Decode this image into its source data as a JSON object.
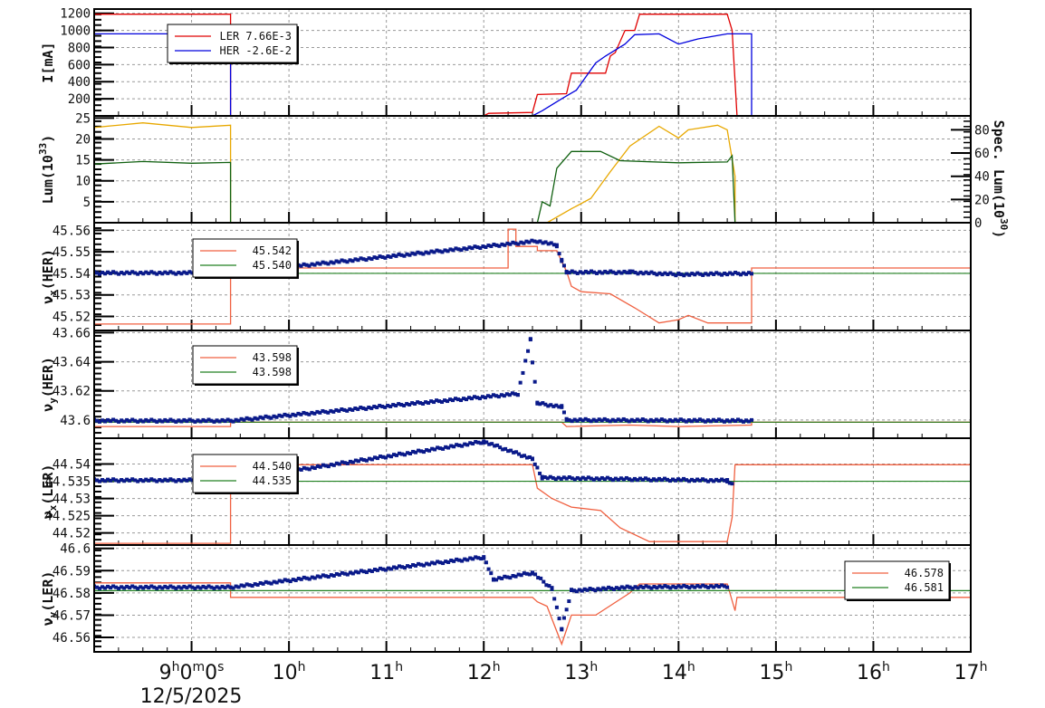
{
  "chart_data": {
    "type": "line",
    "layout": "6 vertically stacked panels sharing time x-axis",
    "x_axis": {
      "range_hours": [
        8,
        17
      ],
      "tick_labels": [
        "9h0m0s",
        "10h",
        "11h",
        "12h",
        "13h",
        "14h",
        "15h",
        "16h",
        "17h"
      ],
      "tick_hours": [
        9,
        10,
        11,
        12,
        13,
        14,
        15,
        16,
        17
      ],
      "date_label": "12/5/2025",
      "grid": true
    },
    "panels": [
      {
        "id": "current",
        "ylabel": "I[mA]",
        "ylim": [
          0,
          1250
        ],
        "yticks": [
          200,
          400,
          600,
          800,
          1000,
          1200
        ],
        "right_axis": null,
        "legend": [
          {
            "label": "LER",
            "value": "7.66E-3",
            "color": "#e00000"
          },
          {
            "label": "HER",
            "value": "-2.6E-2",
            "color": "#0000dd"
          }
        ],
        "series": [
          {
            "name": "LER",
            "color": "#e00000",
            "type": "line",
            "points": [
              [
                8.0,
                1190
              ],
              [
                9.4,
                1190
              ],
              [
                9.4,
                0
              ],
              [
                12.0,
                0
              ],
              [
                12.05,
                30
              ],
              [
                12.5,
                40
              ],
              [
                12.55,
                250
              ],
              [
                12.85,
                260
              ],
              [
                12.9,
                500
              ],
              [
                13.25,
                500
              ],
              [
                13.3,
                700
              ],
              [
                13.35,
                740
              ],
              [
                13.45,
                1000
              ],
              [
                13.55,
                1000
              ],
              [
                13.6,
                1190
              ],
              [
                14.5,
                1190
              ],
              [
                14.55,
                1000
              ],
              [
                14.6,
                0
              ],
              [
                14.8,
                0
              ],
              [
                17,
                0
              ]
            ]
          },
          {
            "name": "HER",
            "color": "#0000dd",
            "type": "line",
            "points": [
              [
                8.0,
                960
              ],
              [
                9.4,
                960
              ],
              [
                9.4,
                0
              ],
              [
                12.5,
                0
              ],
              [
                12.6,
                60
              ],
              [
                12.8,
                200
              ],
              [
                12.95,
                300
              ],
              [
                13.15,
                620
              ],
              [
                13.25,
                700
              ],
              [
                13.45,
                840
              ],
              [
                13.55,
                950
              ],
              [
                13.8,
                960
              ],
              [
                14.0,
                840
              ],
              [
                14.2,
                900
              ],
              [
                14.5,
                960
              ],
              [
                14.75,
                960
              ],
              [
                14.75,
                0
              ],
              [
                17,
                0
              ]
            ]
          }
        ]
      },
      {
        "id": "luminosity",
        "ylabel": "Lum(10^33)",
        "ylim": [
          0,
          25.5
        ],
        "yticks": [
          5,
          10,
          15,
          20,
          25
        ],
        "right_axis": {
          "label": "Spec. Lum(10^30)",
          "ylim": [
            0,
            92
          ],
          "yticks": [
            0,
            20,
            40,
            60,
            80
          ]
        },
        "legend": [],
        "series": [
          {
            "name": "Spec. Lum",
            "axis": "right",
            "color": "#e8a800",
            "type": "line",
            "points": [
              [
                8.0,
                82
              ],
              [
                8.5,
                86
              ],
              [
                9.0,
                82
              ],
              [
                9.4,
                84
              ],
              [
                9.4,
                0
              ],
              [
                12.65,
                0
              ],
              [
                12.9,
                12
              ],
              [
                13.1,
                21
              ],
              [
                13.3,
                44
              ],
              [
                13.5,
                66
              ],
              [
                13.8,
                83
              ],
              [
                14.0,
                73
              ],
              [
                14.1,
                80
              ],
              [
                14.4,
                84
              ],
              [
                14.5,
                80
              ],
              [
                14.58,
                40
              ],
              [
                14.58,
                0
              ],
              [
                17,
                0
              ]
            ]
          },
          {
            "name": "Lum",
            "axis": "left",
            "color": "#106010",
            "type": "line",
            "points": [
              [
                8.0,
                14
              ],
              [
                8.5,
                14.6
              ],
              [
                9.0,
                14.2
              ],
              [
                9.4,
                14.4
              ],
              [
                9.4,
                0
              ],
              [
                12.55,
                0
              ],
              [
                12.6,
                5
              ],
              [
                12.68,
                4
              ],
              [
                12.75,
                13
              ],
              [
                12.9,
                17
              ],
              [
                13.2,
                17
              ],
              [
                13.4,
                14.8
              ],
              [
                14.0,
                14.3
              ],
              [
                14.5,
                14.5
              ],
              [
                14.55,
                16
              ],
              [
                14.58,
                0
              ],
              [
                17,
                0
              ]
            ]
          }
        ]
      },
      {
        "id": "nux-her",
        "ylabel": "νx(HER)",
        "ylim": [
          45.5135,
          45.5635
        ],
        "yticks": [
          45.52,
          45.53,
          45.54,
          45.55,
          45.56
        ],
        "legend": [
          {
            "label": "",
            "value": "45.542",
            "color": "#f06040"
          },
          {
            "label": "",
            "value": "45.540",
            "color": "#208020"
          }
        ],
        "series": [
          {
            "name": "setpoint",
            "color": "#f06040",
            "type": "step",
            "points": [
              [
                8.0,
                45.5165
              ],
              [
                9.4,
                45.5165
              ],
              [
                9.4,
                45.5425
              ],
              [
                12.25,
                45.5425
              ],
              [
                12.25,
                45.5605
              ],
              [
                12.33,
                45.5605
              ],
              [
                12.33,
                45.5525
              ],
              [
                12.55,
                45.5525
              ],
              [
                12.55,
                45.5505
              ],
              [
                12.75,
                45.5505
              ],
              [
                12.8,
                45.5455
              ],
              [
                12.85,
                45.541
              ],
              [
                12.9,
                45.534
              ],
              [
                13.0,
                45.5315
              ],
              [
                13.3,
                45.5305
              ],
              [
                13.55,
                45.524
              ],
              [
                13.8,
                45.517
              ],
              [
                14.0,
                45.5185
              ],
              [
                14.1,
                45.5205
              ],
              [
                14.3,
                45.517
              ],
              [
                14.75,
                45.517
              ],
              [
                14.75,
                45.5425
              ],
              [
                17,
                45.5425
              ]
            ]
          },
          {
            "name": "reference",
            "color": "#208020",
            "type": "hline",
            "value": 45.54
          },
          {
            "name": "measured",
            "color": "#0a1a8a",
            "type": "scatter",
            "points": [
              [
                8.0,
                45.5402
              ],
              [
                9.4,
                45.5402
              ],
              [
                12.55,
                45.555
              ],
              [
                12.75,
                45.553
              ],
              [
                12.8,
                45.546
              ],
              [
                12.85,
                45.5405
              ],
              [
                13.5,
                45.5405
              ],
              [
                14.0,
                45.5395
              ],
              [
                14.75,
                45.54
              ]
            ]
          }
        ]
      },
      {
        "id": "nuy-her",
        "ylabel": "νy(HER)",
        "ylim": [
          43.5875,
          43.6615
        ],
        "yticks": [
          43.6,
          43.62,
          43.64,
          43.66
        ],
        "legend": [
          {
            "label": "",
            "value": "43.598",
            "color": "#f06040"
          },
          {
            "label": "",
            "value": "43.598",
            "color": "#208020"
          }
        ],
        "series": [
          {
            "name": "setpoint",
            "color": "#f06040",
            "type": "step",
            "points": [
              [
                8.0,
                43.5955
              ],
              [
                9.4,
                43.5955
              ],
              [
                9.4,
                43.5985
              ],
              [
                12.8,
                43.5985
              ],
              [
                12.85,
                43.5955
              ],
              [
                13.5,
                43.5965
              ],
              [
                14.0,
                43.5955
              ],
              [
                14.75,
                43.5965
              ],
              [
                14.75,
                43.5985
              ],
              [
                17,
                43.5985
              ]
            ]
          },
          {
            "name": "reference",
            "color": "#208020",
            "type": "hline",
            "value": 43.5985
          },
          {
            "name": "measured",
            "color": "#0a1a8a",
            "type": "scatter",
            "points": [
              [
                8.0,
                43.5995
              ],
              [
                9.4,
                43.5995
              ],
              [
                12.35,
                43.618
              ],
              [
                12.48,
                43.655
              ],
              [
                12.5,
                43.64
              ],
              [
                12.55,
                43.6115
              ],
              [
                12.8,
                43.609
              ],
              [
                12.85,
                43.6
              ],
              [
                14.75,
                43.5995
              ]
            ]
          }
        ]
      },
      {
        "id": "nux-ler",
        "ylabel": "νx(LER)",
        "ylim": [
          44.5165,
          44.5475
        ],
        "yticks": [
          44.52,
          44.525,
          44.53,
          44.535,
          44.54
        ],
        "legend": [
          {
            "label": "",
            "value": "44.540",
            "color": "#f06040"
          },
          {
            "label": "",
            "value": "44.535",
            "color": "#208020"
          }
        ],
        "series": [
          {
            "name": "setpoint",
            "color": "#f06040",
            "type": "step",
            "points": [
              [
                8.0,
                44.517
              ],
              [
                9.4,
                44.517
              ],
              [
                9.4,
                44.5398
              ],
              [
                12.5,
                44.5398
              ],
              [
                12.55,
                44.533
              ],
              [
                12.7,
                44.53
              ],
              [
                12.9,
                44.5275
              ],
              [
                13.2,
                44.5265
              ],
              [
                13.4,
                44.5215
              ],
              [
                13.7,
                44.5175
              ],
              [
                14.5,
                44.5175
              ],
              [
                14.55,
                44.5245
              ],
              [
                14.58,
                44.5398
              ],
              [
                17,
                44.5398
              ]
            ]
          },
          {
            "name": "reference",
            "color": "#208020",
            "type": "hline",
            "value": 44.535
          },
          {
            "name": "measured",
            "color": "#0a1a8a",
            "type": "scatter",
            "points": [
              [
                8.0,
                44.5353
              ],
              [
                9.4,
                44.5353
              ],
              [
                12.0,
                44.5465
              ],
              [
                12.5,
                44.5415
              ],
              [
                12.6,
                44.536
              ],
              [
                14.5,
                44.5352
              ],
              [
                14.55,
                44.534
              ]
            ]
          }
        ]
      },
      {
        "id": "nuy-ler",
        "ylabel": "νy(LER)",
        "ylim": [
          46.5535,
          46.6015
        ],
        "yticks": [
          46.56,
          46.57,
          46.58,
          46.59,
          46.6
        ],
        "legend": [
          {
            "label": "",
            "value": "46.578",
            "color": "#f06040"
          },
          {
            "label": "",
            "value": "46.581",
            "color": "#208020"
          }
        ],
        "series": [
          {
            "name": "setpoint",
            "color": "#f06040",
            "type": "step",
            "points": [
              [
                8.0,
                46.5845
              ],
              [
                9.4,
                46.5845
              ],
              [
                9.4,
                46.578
              ],
              [
                12.5,
                46.578
              ],
              [
                12.55,
                46.576
              ],
              [
                12.65,
                46.574
              ],
              [
                12.8,
                46.557
              ],
              [
                12.9,
                46.57
              ],
              [
                13.15,
                46.57
              ],
              [
                13.5,
                46.58
              ],
              [
                13.6,
                46.584
              ],
              [
                14.5,
                46.584
              ],
              [
                14.58,
                46.572
              ],
              [
                14.6,
                46.578
              ],
              [
                17,
                46.578
              ]
            ]
          },
          {
            "name": "reference",
            "color": "#208020",
            "type": "hline",
            "value": 46.581
          },
          {
            "name": "measured",
            "color": "#0a1a8a",
            "type": "scatter",
            "points": [
              [
                8.0,
                46.5825
              ],
              [
                9.4,
                46.5825
              ],
              [
                12.0,
                46.596
              ],
              [
                12.1,
                46.586
              ],
              [
                12.5,
                46.589
              ],
              [
                12.7,
                46.582
              ],
              [
                12.8,
                46.564
              ],
              [
                12.9,
                46.581
              ],
              [
                13.5,
                46.5825
              ],
              [
                14.5,
                46.583
              ]
            ]
          }
        ]
      }
    ]
  },
  "labels": {
    "panel1_ylabel": "I[mA]",
    "panel2_ylabel": "Lum(10",
    "panel2_ylabel_sup": "33",
    "panel2_right_label": "Spec. Lum(10",
    "panel2_right_sup": "30",
    "date": "12/5/2025"
  }
}
